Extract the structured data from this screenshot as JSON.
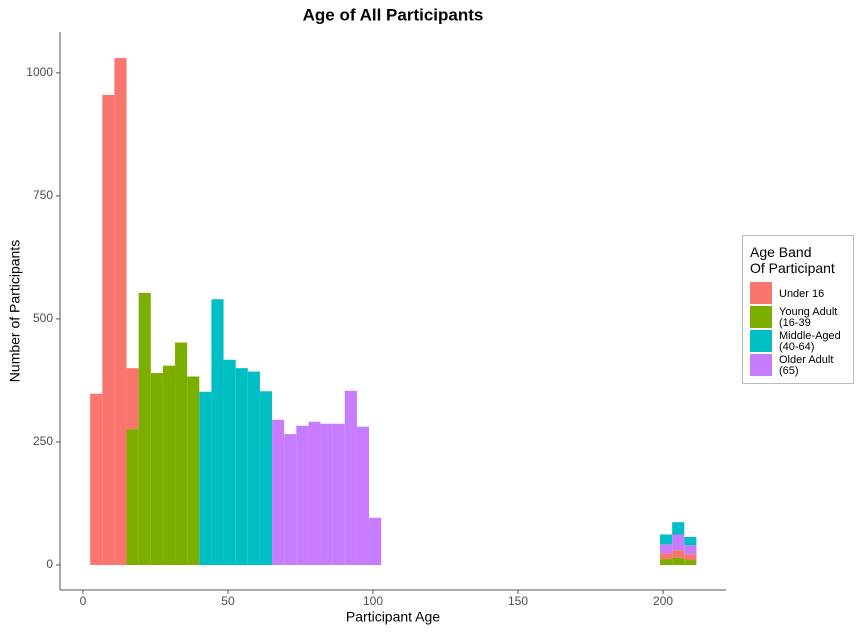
{
  "chart_data": {
    "type": "histogram",
    "title": "Age of All Participants",
    "x_label": "Participant Age",
    "y_label": "Number of Participants",
    "legend_title": "Age Band\nOf Participant",
    "legend_position": "right",
    "stack_order": [
      1,
      0,
      3,
      2
    ],
    "bins": [
      2.5,
      6.68,
      10.86,
      15.04,
      19.22,
      23.4,
      27.58,
      31.76,
      35.94,
      40.12,
      44.3,
      48.48,
      52.66,
      56.84,
      61.02,
      65.2,
      69.38,
      73.56,
      77.74,
      81.92,
      86.1,
      90.28,
      94.46,
      98.64,
      102.82,
      107,
      111.18,
      115.36,
      119.54,
      123.72,
      127.9,
      132.08,
      136.26,
      140.44,
      144.62,
      148.8,
      152.98,
      157.16,
      161.34,
      165.52,
      169.7,
      173.88,
      178.06,
      182.24,
      186.42,
      190.6,
      194.78,
      198.96,
      203.14,
      207.32,
      211.5
    ],
    "series": [
      {
        "name": "Under 16",
        "color": "#f8766d",
        "values": [
          348,
          955,
          1030,
          124,
          0,
          0,
          0,
          0,
          0,
          0,
          0,
          0,
          0,
          0,
          0,
          0,
          0,
          0,
          0,
          0,
          0,
          0,
          0,
          0,
          0,
          0,
          0,
          0,
          0,
          0,
          0,
          0,
          0,
          0,
          0,
          0,
          0,
          0,
          0,
          0,
          0,
          0,
          0,
          0,
          0,
          0,
          0,
          12,
          15,
          12
        ]
      },
      {
        "name": "Young Adult\n(16-39",
        "color": "#7cae00",
        "values": [
          0,
          0,
          0,
          276,
          553,
          390,
          405,
          452,
          383,
          0,
          0,
          0,
          0,
          0,
          0,
          0,
          0,
          0,
          0,
          0,
          0,
          0,
          0,
          0,
          0,
          0,
          0,
          0,
          0,
          0,
          0,
          0,
          0,
          0,
          0,
          0,
          0,
          0,
          0,
          0,
          0,
          0,
          0,
          0,
          0,
          0,
          0,
          12,
          15,
          10
        ]
      },
      {
        "name": "Middle-Aged\n(40-64)",
        "color": "#00bfc4",
        "values": [
          0,
          0,
          0,
          0,
          0,
          0,
          0,
          0,
          0,
          352,
          540,
          417,
          400,
          393,
          353,
          0,
          0,
          0,
          0,
          0,
          0,
          0,
          0,
          0,
          0,
          0,
          0,
          0,
          0,
          0,
          0,
          0,
          0,
          0,
          0,
          0,
          0,
          0,
          0,
          0,
          0,
          0,
          0,
          0,
          0,
          0,
          0,
          20,
          25,
          17
        ]
      },
      {
        "name": "Older Adult\n(65)",
        "color": "#c77cff",
        "values": [
          0,
          0,
          0,
          0,
          0,
          0,
          0,
          0,
          0,
          0,
          0,
          0,
          0,
          0,
          0,
          295,
          266,
          283,
          291,
          287,
          287,
          354,
          281,
          96,
          0,
          0,
          0,
          0,
          0,
          0,
          0,
          0,
          0,
          0,
          0,
          0,
          0,
          0,
          0,
          0,
          0,
          0,
          0,
          0,
          0,
          0,
          0,
          18,
          32,
          18
        ]
      }
    ],
    "xlim": [
      -7.9,
      221.7
    ],
    "ylim": [
      -50.8,
      1083
    ],
    "xticks": [
      0,
      50,
      100,
      150,
      200
    ],
    "yticks": [
      0,
      250,
      500,
      750,
      1000
    ]
  }
}
